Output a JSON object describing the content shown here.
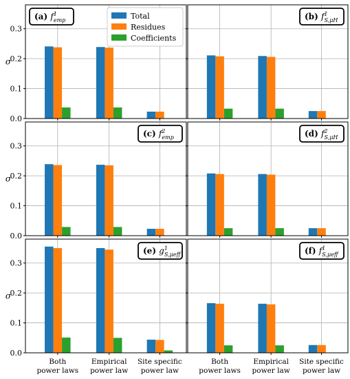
{
  "colors": {
    "Total": "#1f77b4",
    "Residues": "#ff7f0e",
    "Coefficients": "#2ca02c",
    "grid": "#b0b0b0"
  },
  "chart_data": {
    "type": "bar",
    "grid": true,
    "legend": {
      "placement": "top-center of panel (a)",
      "entries": [
        "Total",
        "Residues",
        "Coefficients"
      ]
    },
    "categories": [
      [
        "Both",
        "power laws"
      ],
      [
        "Empirical",
        "power law"
      ],
      [
        "Site specific",
        "power law"
      ]
    ],
    "ylabel": "σ",
    "ylim": [
      0,
      0.38
    ],
    "yticks": [
      "0.0",
      "0.1",
      "0.2",
      "0.3"
    ],
    "panels": [
      {
        "tag": "(a)",
        "fn": "f",
        "sup": "1",
        "sub": "emp",
        "series": [
          {
            "name": "Total",
            "values": [
              0.241,
              0.239,
              0.023
            ]
          },
          {
            "name": "Residues",
            "values": [
              0.238,
              0.237,
              0.023
            ]
          },
          {
            "name": "Coefficients",
            "values": [
              0.037,
              0.037,
              0.0
            ]
          }
        ]
      },
      {
        "tag": "(b)",
        "fn": "f",
        "sup": "1",
        "sub": "S,μH",
        "series": [
          {
            "name": "Total",
            "values": [
              0.211,
              0.209,
              0.025
            ]
          },
          {
            "name": "Residues",
            "values": [
              0.208,
              0.206,
              0.025
            ]
          },
          {
            "name": "Coefficients",
            "values": [
              0.033,
              0.033,
              0.001
            ]
          }
        ]
      },
      {
        "tag": "(c)",
        "fn": "f",
        "sup": "2",
        "sub": "emp",
        "series": [
          {
            "name": "Total",
            "values": [
              0.239,
              0.237,
              0.023
            ]
          },
          {
            "name": "Residues",
            "values": [
              0.236,
              0.235,
              0.023
            ]
          },
          {
            "name": "Coefficients",
            "values": [
              0.029,
              0.029,
              0.0
            ]
          }
        ]
      },
      {
        "tag": "(d)",
        "fn": "f",
        "sup": "2",
        "sub": "S,μH",
        "series": [
          {
            "name": "Total",
            "values": [
              0.208,
              0.206,
              0.025
            ]
          },
          {
            "name": "Residues",
            "values": [
              0.206,
              0.204,
              0.025
            ]
          },
          {
            "name": "Coefficients",
            "values": [
              0.025,
              0.025,
              0.001
            ]
          }
        ]
      },
      {
        "tag": "(e)",
        "fn": "g",
        "sup": "1",
        "sub": "S,μeff",
        "series": [
          {
            "name": "Total",
            "values": [
              0.355,
              0.35,
              0.044
            ]
          },
          {
            "name": "Residues",
            "values": [
              0.35,
              0.345,
              0.043
            ]
          },
          {
            "name": "Coefficients",
            "values": [
              0.051,
              0.05,
              0.008
            ]
          }
        ]
      },
      {
        "tag": "(f)",
        "fn": "f",
        "sup": "1",
        "sub": "S,μeff",
        "series": [
          {
            "name": "Total",
            "values": [
              0.166,
              0.164,
              0.026
            ]
          },
          {
            "name": "Residues",
            "values": [
              0.164,
              0.162,
              0.026
            ]
          },
          {
            "name": "Coefficients",
            "values": [
              0.025,
              0.025,
              0.001
            ]
          }
        ]
      }
    ]
  }
}
